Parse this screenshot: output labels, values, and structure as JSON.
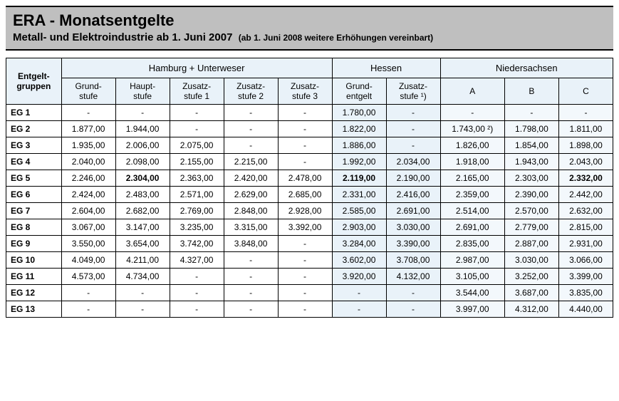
{
  "header": {
    "title": "ERA - Monatsentgelte",
    "subtitle_main": "Metall- und Elektroindustrie ab 1. Juni 2007",
    "subtitle_note": "(ab 1. Juni 2008 weitere Erhöhungen vereinbart)"
  },
  "table": {
    "corner": "Entgelt-\ngruppen",
    "regions": [
      {
        "label": "Hamburg + Unterweser",
        "span": 5,
        "sub": [
          "Grund-\nstufe",
          "Haupt-\nstufe",
          "Zusatz-\nstufe 1",
          "Zusatz-\nstufe 2",
          "Zusatz-\nstufe 3"
        ]
      },
      {
        "label": "Hessen",
        "span": 2,
        "sub": [
          "Grund-\nentgelt",
          "Zusatz-\nstufe ¹)"
        ]
      },
      {
        "label": "Niedersachsen",
        "span": 3,
        "sub": [
          "A",
          "B",
          "C"
        ]
      }
    ],
    "col_bg": [
      "hu",
      "hu",
      "hu",
      "hu",
      "hu",
      "he",
      "he",
      "ns",
      "ns",
      "ns"
    ],
    "bold_cells": [
      [
        4,
        1
      ],
      [
        4,
        5
      ],
      [
        4,
        9
      ]
    ],
    "rows": [
      {
        "label": "EG 1",
        "cells": [
          "-",
          "-",
          "-",
          "-",
          "-",
          "1.780,00",
          "-",
          "-",
          "-",
          "-"
        ]
      },
      {
        "label": "EG 2",
        "cells": [
          "1.877,00",
          "1.944,00",
          "-",
          "-",
          "-",
          "1.822,00",
          "-",
          "1.743,00 ²)",
          "1.798,00",
          "1.811,00"
        ]
      },
      {
        "label": "EG 3",
        "cells": [
          "1.935,00",
          "2.006,00",
          "2.075,00",
          "-",
          "-",
          "1.886,00",
          "-",
          "1.826,00",
          "1.854,00",
          "1.898,00"
        ]
      },
      {
        "label": "EG 4",
        "cells": [
          "2.040,00",
          "2.098,00",
          "2.155,00",
          "2.215,00",
          "-",
          "1.992,00",
          "2.034,00",
          "1.918,00",
          "1.943,00",
          "2.043,00"
        ]
      },
      {
        "label": "EG 5",
        "cells": [
          "2.246,00",
          "2.304,00",
          "2.363,00",
          "2.420,00",
          "2.478,00",
          "2.119,00",
          "2.190,00",
          "2.165,00",
          "2.303,00",
          "2.332,00"
        ]
      },
      {
        "label": "EG 6",
        "cells": [
          "2.424,00",
          "2.483,00",
          "2.571,00",
          "2.629,00",
          "2.685,00",
          "2.331,00",
          "2.416,00",
          "2.359,00",
          "2.390,00",
          "2.442,00"
        ]
      },
      {
        "label": "EG 7",
        "cells": [
          "2.604,00",
          "2.682,00",
          "2.769,00",
          "2.848,00",
          "2.928,00",
          "2.585,00",
          "2.691,00",
          "2.514,00",
          "2.570,00",
          "2.632,00"
        ]
      },
      {
        "label": "EG 8",
        "cells": [
          "3.067,00",
          "3.147,00",
          "3.235,00",
          "3.315,00",
          "3.392,00",
          "2.903,00",
          "3.030,00",
          "2.691,00",
          "2.779,00",
          "2.815,00"
        ]
      },
      {
        "label": "EG 9",
        "cells": [
          "3.550,00",
          "3.654,00",
          "3.742,00",
          "3.848,00",
          "-",
          "3.284,00",
          "3.390,00",
          "2.835,00",
          "2.887,00",
          "2.931,00"
        ]
      },
      {
        "label": "EG 10",
        "cells": [
          "4.049,00",
          "4.211,00",
          "4.327,00",
          "-",
          "-",
          "3.602,00",
          "3.708,00",
          "2.987,00",
          "3.030,00",
          "3.066,00"
        ]
      },
      {
        "label": "EG 11",
        "cells": [
          "4.573,00",
          "4.734,00",
          "-",
          "-",
          "-",
          "3.920,00",
          "4.132,00",
          "3.105,00",
          "3.252,00",
          "3.399,00"
        ]
      },
      {
        "label": "EG 12",
        "cells": [
          "-",
          "-",
          "-",
          "-",
          "-",
          "-",
          "-",
          "3.544,00",
          "3.687,00",
          "3.835,00"
        ]
      },
      {
        "label": "EG 13",
        "cells": [
          "-",
          "-",
          "-",
          "-",
          "-",
          "-",
          "-",
          "3.997,00",
          "4.312,00",
          "4.440,00"
        ]
      }
    ]
  }
}
